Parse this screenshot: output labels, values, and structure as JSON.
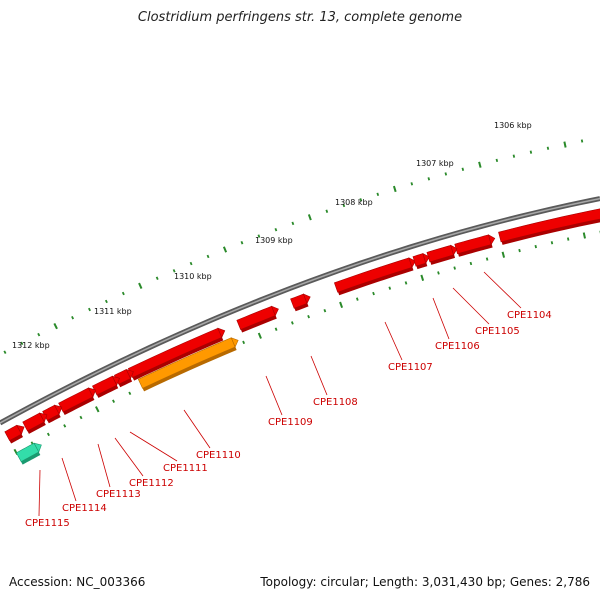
{
  "title": "Clostridium perfringens str. 13, complete genome",
  "footer": {
    "accession": "Accession: NC_003366",
    "summary": "Topology: circular; Length: 3,031,430 bp; Genes: 2,786"
  },
  "colors": {
    "backbone": "#808080",
    "gene": "#ee0000",
    "gene_highlight": "#ff9900",
    "gene_other": "#33ddaa",
    "label": "#cc0000",
    "tick": "#2a8a2a"
  },
  "scale_labels": [
    "1306 kbp",
    "1307 kbp",
    "1308 kbp",
    "1309 kbp",
    "1310 kbp",
    "1311 kbp",
    "1312 kbp"
  ],
  "genes": [
    {
      "name": "CPE1104"
    },
    {
      "name": "CPE1105"
    },
    {
      "name": "CPE1106"
    },
    {
      "name": "CPE1107"
    },
    {
      "name": "CPE1108"
    },
    {
      "name": "CPE1109"
    },
    {
      "name": "CPE1110"
    },
    {
      "name": "CPE1111"
    },
    {
      "name": "CPE1112"
    },
    {
      "name": "CPE1113"
    },
    {
      "name": "CPE1114"
    },
    {
      "name": "CPE1115"
    }
  ]
}
